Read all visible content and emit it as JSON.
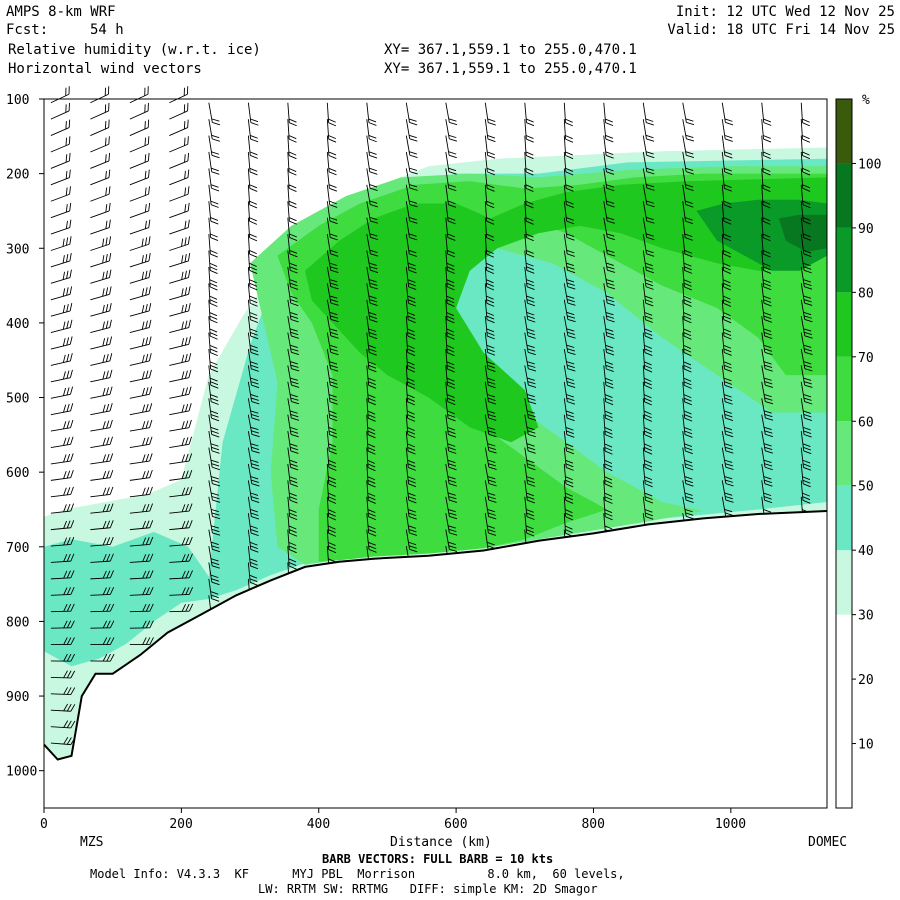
{
  "header": {
    "model": "AMPS 8-km WRF",
    "fcst_label": "Fcst:",
    "fcst_value": "54 h",
    "field1": "Relative humidity (w.r.t. ice)",
    "field2": "Horizontal wind vectors",
    "xy1": "XY= 367.1,559.1 to 255.0,470.1",
    "xy2": "XY= 367.1,559.1 to 255.0,470.1",
    "init": "Init: 12 UTC Wed 12 Nov 25",
    "valid": "Valid: 18 UTC Fri 14 Nov 25"
  },
  "footer": {
    "barb_note": "BARB VECTORS: FULL BARB = 10 kts",
    "model_info": "Model Info: V4.3.3  KF      MYJ PBL  Morrison          8.0 km,  60 levels,",
    "physics": "LW: RRTM SW: RRTMG   DIFF: simple KM: 2D Smagor"
  },
  "chart_data": {
    "type": "heatmap",
    "xlabel": "Distance (km)",
    "x_start_label": "MZS",
    "x_end_label": "DOMEC",
    "x_ticks": [
      "0",
      "200",
      "400",
      "600",
      "800",
      "1000"
    ],
    "x_tick_values": [
      0,
      200,
      400,
      600,
      800,
      1000
    ],
    "xlim": [
      0,
      1140
    ],
    "y_ticks": [
      "100",
      "200",
      "300",
      "400",
      "500",
      "600",
      "700",
      "800",
      "900",
      "1000"
    ],
    "y_tick_values": [
      100,
      200,
      300,
      400,
      500,
      600,
      700,
      800,
      900,
      1000
    ],
    "ylim": [
      100,
      1050
    ],
    "colorbar_unit": "%",
    "colorbar_labels": [
      "10",
      "20",
      "30",
      "40",
      "50",
      "60",
      "70",
      "80",
      "90",
      "100"
    ],
    "colorbar_levels": [
      {
        "min": 0,
        "max": 10,
        "color": "#ffffff"
      },
      {
        "min": 10,
        "max": 20,
        "color": "#ffffff"
      },
      {
        "min": 20,
        "max": 30,
        "color": "#ffffff"
      },
      {
        "min": 30,
        "max": 40,
        "color": "#c8f8e0"
      },
      {
        "min": 40,
        "max": 50,
        "color": "#6ae8c4"
      },
      {
        "min": 50,
        "max": 60,
        "color": "#66e87a"
      },
      {
        "min": 60,
        "max": 70,
        "color": "#3edc3e"
      },
      {
        "min": 70,
        "max": 80,
        "color": "#1ec81e"
      },
      {
        "min": 80,
        "max": 90,
        "color": "#0a9a28"
      },
      {
        "min": 90,
        "max": 100,
        "color": "#087820"
      },
      {
        "min": 100,
        "max": 110,
        "color": "#3a5a0c"
      }
    ],
    "terrain_profile": [
      [
        0,
        965
      ],
      [
        20,
        985
      ],
      [
        40,
        980
      ],
      [
        55,
        900
      ],
      [
        75,
        870
      ],
      [
        100,
        870
      ],
      [
        140,
        845
      ],
      [
        180,
        815
      ],
      [
        230,
        790
      ],
      [
        280,
        765
      ],
      [
        330,
        745
      ],
      [
        380,
        727
      ],
      [
        430,
        720
      ],
      [
        480,
        716
      ],
      [
        560,
        712
      ],
      [
        640,
        705
      ],
      [
        720,
        692
      ],
      [
        800,
        682
      ],
      [
        880,
        670
      ],
      [
        960,
        662
      ],
      [
        1040,
        656
      ],
      [
        1140,
        652
      ]
    ],
    "rh_regions": [
      {
        "level": "30-40",
        "pts": [
          [
            0,
            660
          ],
          [
            30,
            650
          ],
          [
            90,
            640
          ],
          [
            150,
            630
          ],
          [
            200,
            610
          ],
          [
            240,
            470
          ],
          [
            290,
            390
          ],
          [
            360,
            300
          ],
          [
            450,
            230
          ],
          [
            560,
            190
          ],
          [
            660,
            180
          ],
          [
            780,
            175
          ],
          [
            900,
            170
          ],
          [
            1140,
            165
          ],
          [
            1140,
            652
          ],
          [
            1040,
            656
          ],
          [
            960,
            662
          ],
          [
            880,
            670
          ],
          [
            800,
            682
          ],
          [
            720,
            692
          ],
          [
            640,
            705
          ],
          [
            560,
            712
          ],
          [
            480,
            716
          ],
          [
            430,
            720
          ],
          [
            380,
            727
          ],
          [
            330,
            745
          ],
          [
            280,
            765
          ],
          [
            230,
            790
          ],
          [
            180,
            815
          ],
          [
            140,
            845
          ],
          [
            100,
            870
          ],
          [
            75,
            870
          ],
          [
            55,
            900
          ],
          [
            40,
            980
          ],
          [
            20,
            985
          ],
          [
            0,
            965
          ]
        ]
      },
      {
        "level": "40-50",
        "pts": [
          [
            0,
            700
          ],
          [
            40,
            690
          ],
          [
            100,
            700
          ],
          [
            160,
            680
          ],
          [
            210,
            700
          ],
          [
            240,
            740
          ],
          [
            260,
            560
          ],
          [
            300,
            430
          ],
          [
            340,
            330
          ],
          [
            410,
            270
          ],
          [
            500,
            220
          ],
          [
            600,
            200
          ],
          [
            720,
            200
          ],
          [
            850,
            185
          ],
          [
            1140,
            180
          ],
          [
            1140,
            640
          ],
          [
            1040,
            650
          ],
          [
            960,
            657
          ],
          [
            880,
            664
          ],
          [
            800,
            675
          ],
          [
            720,
            686
          ],
          [
            640,
            700
          ],
          [
            560,
            707
          ],
          [
            480,
            712
          ],
          [
            430,
            716
          ],
          [
            380,
            722
          ],
          [
            330,
            738
          ],
          [
            280,
            758
          ],
          [
            240,
            770
          ],
          [
            200,
            775
          ],
          [
            160,
            800
          ],
          [
            120,
            830
          ],
          [
            80,
            850
          ],
          [
            40,
            860
          ],
          [
            0,
            840
          ]
        ]
      },
      {
        "level": "50-60",
        "pts": [
          [
            300,
            320
          ],
          [
            360,
            270
          ],
          [
            440,
            230
          ],
          [
            520,
            205
          ],
          [
            620,
            200
          ],
          [
            720,
            205
          ],
          [
            850,
            195
          ],
          [
            1000,
            190
          ],
          [
            1140,
            190
          ],
          [
            1140,
            520
          ],
          [
            1060,
            520
          ],
          [
            980,
            470
          ],
          [
            900,
            420
          ],
          [
            820,
            360
          ],
          [
            740,
            320
          ],
          [
            660,
            300
          ],
          [
            600,
            320
          ],
          [
            560,
            380
          ],
          [
            620,
            460
          ],
          [
            700,
            520
          ],
          [
            760,
            560
          ],
          [
            820,
            600
          ],
          [
            900,
            640
          ],
          [
            960,
            652
          ],
          [
            880,
            666
          ],
          [
            800,
            678
          ],
          [
            720,
            690
          ],
          [
            640,
            702
          ],
          [
            560,
            709
          ],
          [
            480,
            713
          ],
          [
            430,
            717
          ],
          [
            380,
            724
          ],
          [
            340,
            700
          ],
          [
            330,
            600
          ],
          [
            340,
            480
          ],
          [
            320,
            400
          ]
        ]
      },
      {
        "level": "60-70",
        "pts": [
          [
            340,
            310
          ],
          [
            400,
            270
          ],
          [
            460,
            240
          ],
          [
            540,
            215
          ],
          [
            620,
            210
          ],
          [
            700,
            220
          ],
          [
            780,
            215
          ],
          [
            860,
            205
          ],
          [
            960,
            200
          ],
          [
            1140,
            200
          ],
          [
            1140,
            470
          ],
          [
            1080,
            470
          ],
          [
            1040,
            420
          ],
          [
            980,
            380
          ],
          [
            900,
            350
          ],
          [
            820,
            310
          ],
          [
            760,
            280
          ],
          [
            700,
            260
          ],
          [
            640,
            270
          ],
          [
            600,
            300
          ],
          [
            560,
            350
          ],
          [
            540,
            420
          ],
          [
            580,
            480
          ],
          [
            640,
            540
          ],
          [
            700,
            580
          ],
          [
            760,
            620
          ],
          [
            820,
            650
          ],
          [
            760,
            668
          ],
          [
            700,
            690
          ],
          [
            640,
            702
          ],
          [
            560,
            709
          ],
          [
            480,
            713
          ],
          [
            430,
            718
          ],
          [
            400,
            720
          ],
          [
            400,
            650
          ],
          [
            420,
            560
          ],
          [
            420,
            470
          ],
          [
            390,
            400
          ],
          [
            360,
            360
          ]
        ]
      },
      {
        "level": "70-80",
        "pts": [
          [
            380,
            330
          ],
          [
            430,
            290
          ],
          [
            480,
            260
          ],
          [
            540,
            240
          ],
          [
            600,
            240
          ],
          [
            650,
            260
          ],
          [
            700,
            240
          ],
          [
            760,
            225
          ],
          [
            840,
            215
          ],
          [
            940,
            210
          ],
          [
            1140,
            205
          ],
          [
            1140,
            300
          ],
          [
            1100,
            320
          ],
          [
            1040,
            330
          ],
          [
            980,
            320
          ],
          [
            900,
            300
          ],
          [
            840,
            280
          ],
          [
            780,
            270
          ],
          [
            720,
            280
          ],
          [
            660,
            300
          ],
          [
            620,
            330
          ],
          [
            600,
            380
          ],
          [
            640,
            440
          ],
          [
            700,
            490
          ],
          [
            720,
            540
          ],
          [
            680,
            560
          ],
          [
            620,
            540
          ],
          [
            560,
            500
          ],
          [
            500,
            470
          ],
          [
            460,
            440
          ],
          [
            420,
            400
          ],
          [
            390,
            370
          ]
        ]
      },
      {
        "level": "80-90",
        "pts": [
          [
            950,
            250
          ],
          [
            990,
            240
          ],
          [
            1040,
            235
          ],
          [
            1100,
            235
          ],
          [
            1140,
            240
          ],
          [
            1140,
            310
          ],
          [
            1100,
            330
          ],
          [
            1060,
            330
          ],
          [
            1020,
            310
          ],
          [
            980,
            290
          ]
        ]
      },
      {
        "level": "90-100",
        "pts": [
          [
            1070,
            260
          ],
          [
            1100,
            255
          ],
          [
            1140,
            255
          ],
          [
            1140,
            300
          ],
          [
            1110,
            305
          ],
          [
            1080,
            290
          ]
        ]
      }
    ]
  }
}
